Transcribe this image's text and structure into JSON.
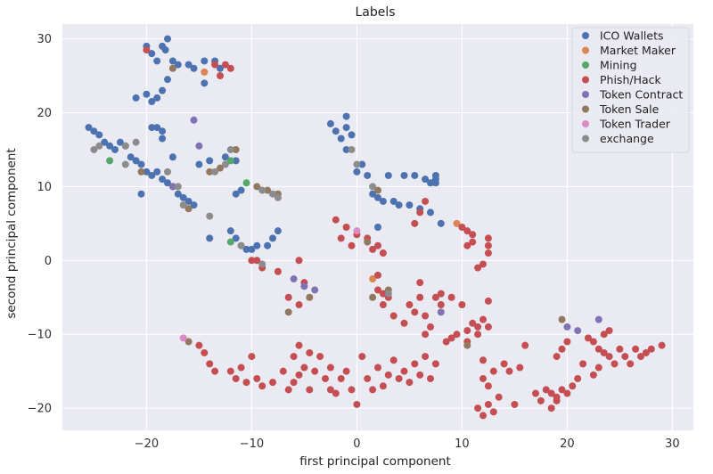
{
  "chart_data": {
    "type": "scatter",
    "title": "Labels",
    "xlabel": "first principal component",
    "ylabel": "second principal component",
    "xlim": [
      -28,
      32
    ],
    "ylim": [
      -23,
      32
    ],
    "xticks": [
      -20,
      -10,
      0,
      10,
      20,
      30
    ],
    "yticks": [
      -20,
      -10,
      0,
      10,
      20,
      30
    ],
    "grid": true,
    "legend_position": "top-right",
    "series": [
      {
        "name": "ICO Wallets",
        "color": "#4c72b0",
        "points": [
          [
            -20,
            29
          ],
          [
            -19.5,
            28
          ],
          [
            -19,
            27
          ],
          [
            -18.5,
            29
          ],
          [
            -18,
            30
          ],
          [
            -18.2,
            28.5
          ],
          [
            -17.5,
            27
          ],
          [
            -17,
            26.5
          ],
          [
            -16,
            26.5
          ],
          [
            -15.5,
            26
          ],
          [
            -14.5,
            27
          ],
          [
            -13.5,
            27
          ],
          [
            -13,
            26
          ],
          [
            -14.5,
            24
          ],
          [
            -21,
            22
          ],
          [
            -20,
            22.5
          ],
          [
            -19.5,
            21.5
          ],
          [
            -19,
            22
          ],
          [
            -18.5,
            23
          ],
          [
            -18,
            24.5
          ],
          [
            -25.5,
            18
          ],
          [
            -25,
            17.5
          ],
          [
            -24.5,
            17
          ],
          [
            -24,
            16
          ],
          [
            -23.5,
            15.5
          ],
          [
            -23,
            15
          ],
          [
            -22.5,
            16
          ],
          [
            -22,
            15.5
          ],
          [
            -21.5,
            14
          ],
          [
            -21,
            13.5
          ],
          [
            -20.5,
            13
          ],
          [
            -20,
            12
          ],
          [
            -19.5,
            11.5
          ],
          [
            -19,
            12
          ],
          [
            -18.5,
            11
          ],
          [
            -18,
            10.5
          ],
          [
            -17.5,
            10
          ],
          [
            -17,
            9
          ],
          [
            -16.5,
            8.5
          ],
          [
            -16,
            8
          ],
          [
            -15.5,
            7.5
          ],
          [
            -20.5,
            9
          ],
          [
            -19.5,
            18
          ],
          [
            -19,
            18
          ],
          [
            -18.5,
            17.5
          ],
          [
            -18.5,
            16.5
          ],
          [
            -17.5,
            14
          ],
          [
            -15,
            13
          ],
          [
            -14,
            13.5
          ],
          [
            -12.5,
            14
          ],
          [
            -11.5,
            13.5
          ],
          [
            -11.5,
            9
          ],
          [
            -11,
            9.5
          ],
          [
            -14,
            3
          ],
          [
            -12,
            4
          ],
          [
            -11.5,
            3
          ],
          [
            -11,
            2
          ],
          [
            -10.5,
            1.5
          ],
          [
            -10,
            1.5
          ],
          [
            -9.5,
            2
          ],
          [
            -8.5,
            2
          ],
          [
            -8,
            3
          ],
          [
            -7.5,
            4
          ],
          [
            -2.5,
            18.5
          ],
          [
            -2,
            17.5
          ],
          [
            -1.5,
            16.5
          ],
          [
            -1,
            19.5
          ],
          [
            -1,
            18
          ],
          [
            -0.5,
            17
          ],
          [
            -1,
            15
          ],
          [
            0,
            12
          ],
          [
            0.5,
            13
          ],
          [
            1,
            11.5
          ],
          [
            1.5,
            9
          ],
          [
            2,
            8.5
          ],
          [
            2.5,
            8
          ],
          [
            3.5,
            8
          ],
          [
            4,
            7.5
          ],
          [
            5,
            7.5
          ],
          [
            6,
            7
          ],
          [
            7,
            6.5
          ],
          [
            7,
            10.5
          ],
          [
            7.5,
            11
          ],
          [
            7.5,
            10.5
          ],
          [
            3,
            11.5
          ],
          [
            4.5,
            11.5
          ],
          [
            5.5,
            11.5
          ],
          [
            6.5,
            11
          ],
          [
            7.5,
            11.5
          ],
          [
            2,
            4.5
          ],
          [
            8,
            5
          ]
        ]
      },
      {
        "name": "Market Maker",
        "color": "#dd8452",
        "points": [
          [
            -14.5,
            25.5
          ],
          [
            9.5,
            5
          ],
          [
            1.5,
            -2.5
          ]
        ]
      },
      {
        "name": "Mining",
        "color": "#55a868",
        "points": [
          [
            -23.5,
            13.5
          ],
          [
            -12,
            13.5
          ],
          [
            -12,
            2.5
          ],
          [
            -10.5,
            10.5
          ]
        ]
      },
      {
        "name": "Phish/Hack",
        "color": "#c44e52",
        "points": [
          [
            -20,
            28.5
          ],
          [
            -13.5,
            26.5
          ],
          [
            -13,
            25
          ],
          [
            -12.5,
            26.5
          ],
          [
            -12,
            26
          ],
          [
            -10,
            0
          ],
          [
            -9.5,
            0
          ],
          [
            -9,
            -1
          ],
          [
            -7.5,
            -1.5
          ],
          [
            -6.5,
            -5
          ],
          [
            -5.5,
            0
          ],
          [
            -5,
            -3
          ],
          [
            -5.5,
            -6
          ],
          [
            -2,
            5.5
          ],
          [
            -1.5,
            3
          ],
          [
            -1,
            4.5
          ],
          [
            -0.5,
            2
          ],
          [
            0,
            3.5
          ],
          [
            1,
            3
          ],
          [
            1.5,
            1.5
          ],
          [
            2,
            2
          ],
          [
            2.5,
            1
          ],
          [
            2,
            -2
          ],
          [
            2,
            -4
          ],
          [
            2.5,
            -4.5
          ],
          [
            2.5,
            -6
          ],
          [
            3,
            -5
          ],
          [
            3.5,
            -7.5
          ],
          [
            4.5,
            -8.5
          ],
          [
            5,
            -6
          ],
          [
            5.5,
            -7
          ],
          [
            6,
            -3
          ],
          [
            6,
            -5
          ],
          [
            6.5,
            -7.5
          ],
          [
            6.5,
            -10
          ],
          [
            7,
            -9
          ],
          [
            7.5,
            -5
          ],
          [
            8,
            -6
          ],
          [
            8,
            -4.5
          ],
          [
            9,
            -5
          ],
          [
            10,
            -6
          ],
          [
            10.5,
            -9.5
          ],
          [
            11,
            -8.5
          ],
          [
            11.5,
            -10
          ],
          [
            12,
            -8
          ],
          [
            12.5,
            -9
          ],
          [
            12.5,
            -5.5
          ],
          [
            10.5,
            2
          ],
          [
            11,
            2.5
          ],
          [
            11.5,
            -1
          ],
          [
            12,
            -0.5
          ],
          [
            12.5,
            1
          ],
          [
            12.5,
            2
          ],
          [
            12.5,
            3
          ],
          [
            10,
            4.5
          ],
          [
            10.5,
            4
          ],
          [
            11,
            3.5
          ],
          [
            5.5,
            5
          ],
          [
            6,
            6.5
          ],
          [
            6.5,
            8
          ],
          [
            -15,
            -11.5
          ],
          [
            -14.5,
            -12.5
          ],
          [
            -14,
            -14
          ],
          [
            -13.5,
            -15
          ],
          [
            -12,
            -15
          ],
          [
            -11.5,
            -16
          ],
          [
            -11,
            -14.5
          ],
          [
            -10.5,
            -16.5
          ],
          [
            -10,
            -13
          ],
          [
            -9.5,
            -16
          ],
          [
            -9,
            -17
          ],
          [
            -8,
            -16.5
          ],
          [
            -7,
            -15
          ],
          [
            -6.5,
            -17.5
          ],
          [
            -6,
            -16.5
          ],
          [
            -5.5,
            -15.5
          ],
          [
            -5,
            -14.5
          ],
          [
            -4.5,
            -17.5
          ],
          [
            -4,
            -15
          ],
          [
            -3.5,
            -13
          ],
          [
            -3,
            -16
          ],
          [
            -2.5,
            -17.5
          ],
          [
            -2,
            -18
          ],
          [
            -1.5,
            -16
          ],
          [
            -1,
            -15
          ],
          [
            -0.5,
            -17.5
          ],
          [
            0,
            -19.5
          ],
          [
            0.5,
            -13
          ],
          [
            1,
            -16
          ],
          [
            1.5,
            -17.5
          ],
          [
            2,
            -14.5
          ],
          [
            2.5,
            -17
          ],
          [
            3,
            -15.5
          ],
          [
            3.5,
            -13.5
          ],
          [
            4,
            -16
          ],
          [
            4.5,
            -15
          ],
          [
            5,
            -16.5
          ],
          [
            5.5,
            -14
          ],
          [
            6,
            -15.5
          ],
          [
            6.5,
            -13
          ],
          [
            7,
            -16
          ],
          [
            7.5,
            -14
          ],
          [
            8.5,
            -11
          ],
          [
            9,
            -10.5
          ],
          [
            -5.5,
            -11.5
          ],
          [
            -6,
            -13
          ],
          [
            -4.5,
            -12.5
          ],
          [
            -2.5,
            -14.5
          ],
          [
            9.5,
            -10
          ],
          [
            10.5,
            -11
          ],
          [
            11.5,
            -9
          ],
          [
            12,
            -13.5
          ],
          [
            12,
            -16
          ],
          [
            12.5,
            -17
          ],
          [
            13,
            -15
          ],
          [
            11.5,
            -20
          ],
          [
            12,
            -21
          ],
          [
            12.5,
            -19.5
          ],
          [
            13,
            -20.5
          ],
          [
            13.5,
            -18.5
          ],
          [
            14,
            -14
          ],
          [
            14.5,
            -15
          ],
          [
            15,
            -19.5
          ],
          [
            15.5,
            -14.5
          ],
          [
            16,
            -11.5
          ],
          [
            17,
            -18
          ],
          [
            17.5,
            -19
          ],
          [
            18,
            -17.5
          ],
          [
            18.5,
            -20
          ],
          [
            18.5,
            -18
          ],
          [
            19,
            -19
          ],
          [
            19,
            -18.5
          ],
          [
            19.5,
            -17.5
          ],
          [
            20,
            -18
          ],
          [
            19,
            -13
          ],
          [
            19.5,
            -12
          ],
          [
            20,
            -11
          ],
          [
            20.5,
            -17
          ],
          [
            21,
            -16
          ],
          [
            21.5,
            -14
          ],
          [
            22,
            -10.5
          ],
          [
            22.5,
            -11
          ],
          [
            23,
            -12
          ],
          [
            23.5,
            -12.5
          ],
          [
            24,
            -13
          ],
          [
            24.5,
            -14
          ],
          [
            25,
            -12
          ],
          [
            25.5,
            -13
          ],
          [
            26,
            -14
          ],
          [
            26.5,
            -12
          ],
          [
            27,
            -13
          ],
          [
            27.5,
            -12.5
          ],
          [
            28,
            -12
          ],
          [
            29,
            -11.5
          ],
          [
            24,
            -9.5
          ],
          [
            23,
            -14.5
          ],
          [
            22.5,
            -15.5
          ],
          [
            23.5,
            -10
          ]
        ]
      },
      {
        "name": "Token Contract",
        "color": "#8172b3",
        "points": [
          [
            -15.5,
            19
          ],
          [
            -15,
            15.5
          ],
          [
            -17.5,
            10
          ],
          [
            -6,
            -2.5
          ],
          [
            -4,
            -4
          ],
          [
            -5,
            -3.5
          ],
          [
            8,
            -7
          ],
          [
            20,
            -9
          ],
          [
            21,
            -9.5
          ],
          [
            23,
            -8
          ]
        ]
      },
      {
        "name": "Token Sale",
        "color": "#937860",
        "points": [
          [
            -17.5,
            26
          ],
          [
            -20.5,
            12
          ],
          [
            -16,
            7
          ],
          [
            -14,
            12
          ],
          [
            -13,
            12.5
          ],
          [
            -11.5,
            15
          ],
          [
            -9.5,
            10
          ],
          [
            -8.5,
            9.5
          ],
          [
            -7.5,
            9
          ],
          [
            -6.5,
            -7
          ],
          [
            -4.5,
            -5
          ],
          [
            -16,
            -11
          ],
          [
            1,
            2.5
          ],
          [
            1.5,
            -5
          ],
          [
            10.5,
            -11.5
          ],
          [
            19.5,
            -8
          ],
          [
            2,
            9.5
          ],
          [
            3,
            -4
          ]
        ]
      },
      {
        "name": "Token Trader",
        "color": "#da8bc3",
        "points": [
          [
            -16.5,
            -10.5
          ],
          [
            0,
            4
          ]
        ]
      },
      {
        "name": "exchange",
        "color": "#8c8c8c",
        "points": [
          [
            -25,
            15
          ],
          [
            -24.5,
            15.5
          ],
          [
            -22,
            15.5
          ],
          [
            -21,
            16
          ],
          [
            -22,
            13
          ],
          [
            -18,
            12
          ],
          [
            -17,
            10
          ],
          [
            -16.5,
            7.5
          ],
          [
            -14,
            6
          ],
          [
            -13.5,
            12
          ],
          [
            -12.5,
            13
          ],
          [
            -12,
            15
          ],
          [
            -9,
            9.5
          ],
          [
            -8,
            9
          ],
          [
            -7.5,
            8.5
          ],
          [
            -11,
            2
          ],
          [
            -9,
            -0.5
          ],
          [
            -0.5,
            15
          ],
          [
            0,
            13
          ],
          [
            1.5,
            10
          ],
          [
            3,
            -4.5
          ]
        ]
      }
    ]
  }
}
